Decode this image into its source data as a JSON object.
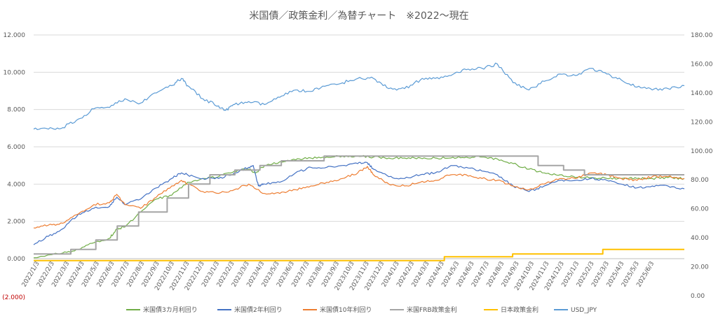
{
  "chart_data": {
    "type": "line",
    "title": "米国債／政策金利／為替チャート　※2022～現在",
    "y_left": {
      "ylim": [
        -2,
        12
      ],
      "ticks": [
        -2,
        0,
        2,
        4,
        6,
        8,
        10,
        12
      ],
      "tick_labels": [
        "(2.000)",
        "0.000",
        "2.000",
        "4.000",
        "6.000",
        "8.000",
        "10.000",
        "12.000"
      ]
    },
    "y_right": {
      "ylim": [
        0,
        180
      ],
      "ticks": [
        0,
        20,
        40,
        60,
        80,
        100,
        120,
        140,
        160,
        180
      ],
      "tick_labels": [
        "0.00",
        "20.00",
        "40.00",
        "60.00",
        "80.00",
        "100.00",
        "120.00",
        "140.00",
        "160.00",
        "180.00"
      ]
    },
    "x_labels": [
      "2022/1/3",
      "2022/2/3",
      "2022/3/3",
      "2022/4/3",
      "2022/5/3",
      "2022/6/3",
      "2022/7/3",
      "2022/8/3",
      "2022/9/3",
      "2022/10/3",
      "2022/11/3",
      "2022/12/3",
      "2023/1/3",
      "2023/2/3",
      "2023/3/3",
      "2023/4/3",
      "2023/5/3",
      "2023/6/3",
      "2023/7/3",
      "2023/8/3",
      "2023/9/3",
      "2023/10/3",
      "2023/11/3",
      "2023/12/3",
      "2024/1/3",
      "2024/2/3",
      "2024/3/3",
      "2024/4/3",
      "2024/5/3",
      "2024/6/3",
      "2024/7/3",
      "2024/8/3",
      "2024/9/3",
      "2024/10/3",
      "2024/11/3",
      "2024/12/3",
      "2025/1/3",
      "2025/2/3",
      "2025/3/3",
      "2025/4/3",
      "2025/5/3",
      "2025/6/3"
    ],
    "x_range": [
      "2022-01-03",
      "2025-07-03"
    ],
    "grid": "horizontal",
    "legend": "bottom",
    "series": [
      {
        "name": "米国債3カ月利回り",
        "axis": "left",
        "color": "#70ad47",
        "style": "line",
        "x": [
          "2022-01-03",
          "2022-03-01",
          "2022-04-01",
          "2022-05-01",
          "2022-06-01",
          "2022-06-15",
          "2022-07-01",
          "2022-08-01",
          "2022-09-01",
          "2022-10-01",
          "2022-11-01",
          "2022-12-01",
          "2023-01-01",
          "2023-02-01",
          "2023-03-01",
          "2023-03-15",
          "2023-04-01",
          "2023-05-01",
          "2023-06-01",
          "2023-07-01",
          "2023-08-01",
          "2023-09-01",
          "2023-10-01",
          "2023-11-01",
          "2023-12-01",
          "2024-01-01",
          "2024-02-01",
          "2024-03-01",
          "2024-04-01",
          "2024-05-01",
          "2024-06-01",
          "2024-07-01",
          "2024-08-01",
          "2024-09-01",
          "2024-10-01",
          "2024-11-01",
          "2024-12-01",
          "2025-01-01",
          "2025-02-01",
          "2025-03-01",
          "2025-04-01",
          "2025-05-01",
          "2025-06-01",
          "2025-07-03"
        ],
        "values": [
          0.05,
          0.3,
          0.5,
          0.85,
          1.1,
          1.6,
          1.7,
          2.5,
          3.2,
          3.4,
          4.1,
          4.3,
          4.4,
          4.7,
          4.8,
          4.6,
          5.0,
          5.2,
          5.3,
          5.4,
          5.45,
          5.5,
          5.5,
          5.45,
          5.4,
          5.4,
          5.4,
          5.4,
          5.4,
          5.45,
          5.45,
          5.35,
          5.1,
          4.8,
          4.6,
          4.5,
          4.35,
          4.35,
          4.3,
          4.3,
          4.3,
          4.3,
          4.35,
          4.3
        ]
      },
      {
        "name": "米国債2年利回り",
        "axis": "left",
        "color": "#4472c4",
        "style": "line",
        "x": [
          "2022-01-03",
          "2022-02-01",
          "2022-03-01",
          "2022-04-01",
          "2022-05-01",
          "2022-06-01",
          "2022-06-15",
          "2022-07-01",
          "2022-08-01",
          "2022-09-01",
          "2022-10-01",
          "2022-10-20",
          "2022-11-01",
          "2022-12-01",
          "2023-01-01",
          "2023-02-01",
          "2023-03-01",
          "2023-03-10",
          "2023-03-20",
          "2023-04-01",
          "2023-05-01",
          "2023-06-01",
          "2023-07-01",
          "2023-08-01",
          "2023-09-01",
          "2023-10-01",
          "2023-10-20",
          "2023-11-01",
          "2023-12-01",
          "2024-01-01",
          "2024-02-01",
          "2024-03-01",
          "2024-04-01",
          "2024-05-01",
          "2024-06-01",
          "2024-07-01",
          "2024-08-01",
          "2024-09-01",
          "2024-10-01",
          "2024-11-01",
          "2024-12-01",
          "2025-01-01",
          "2025-02-01",
          "2025-03-01",
          "2025-04-01",
          "2025-05-01",
          "2025-06-01",
          "2025-07-03"
        ],
        "values": [
          0.75,
          1.2,
          1.6,
          2.4,
          2.7,
          2.8,
          3.3,
          2.9,
          3.2,
          3.8,
          4.3,
          4.6,
          4.5,
          4.3,
          4.3,
          4.6,
          4.9,
          5.0,
          3.9,
          4.0,
          4.1,
          4.6,
          4.9,
          4.9,
          5.0,
          5.1,
          5.15,
          4.8,
          4.4,
          4.3,
          4.5,
          4.6,
          5.0,
          4.9,
          4.7,
          4.5,
          3.9,
          3.6,
          3.9,
          4.2,
          4.2,
          4.3,
          4.2,
          4.0,
          3.8,
          3.9,
          3.9,
          3.75
        ]
      },
      {
        "name": "米国債10年利回り",
        "axis": "left",
        "color": "#ed7d31",
        "style": "line",
        "x": [
          "2022-01-03",
          "2022-02-01",
          "2022-03-01",
          "2022-04-01",
          "2022-05-01",
          "2022-06-01",
          "2022-06-15",
          "2022-07-01",
          "2022-08-01",
          "2022-09-01",
          "2022-10-01",
          "2022-10-20",
          "2022-11-01",
          "2022-12-01",
          "2023-01-01",
          "2023-02-01",
          "2023-03-01",
          "2023-04-01",
          "2023-05-01",
          "2023-06-01",
          "2023-07-01",
          "2023-08-01",
          "2023-09-01",
          "2023-10-01",
          "2023-10-20",
          "2023-11-01",
          "2023-12-01",
          "2024-01-01",
          "2024-02-01",
          "2024-03-01",
          "2024-04-01",
          "2024-05-01",
          "2024-06-01",
          "2024-07-01",
          "2024-08-01",
          "2024-09-01",
          "2024-10-01",
          "2024-11-01",
          "2024-12-01",
          "2025-01-01",
          "2025-02-01",
          "2025-03-01",
          "2025-04-01",
          "2025-05-01",
          "2025-06-01",
          "2025-07-03"
        ],
        "values": [
          1.65,
          1.8,
          1.9,
          2.4,
          2.9,
          3.0,
          3.45,
          2.9,
          2.7,
          3.3,
          3.9,
          4.2,
          4.0,
          3.6,
          3.5,
          3.7,
          4.0,
          3.5,
          3.5,
          3.7,
          3.9,
          4.1,
          4.3,
          4.6,
          4.95,
          4.5,
          4.0,
          3.9,
          4.1,
          4.2,
          4.5,
          4.5,
          4.3,
          4.2,
          3.9,
          3.7,
          4.0,
          4.3,
          4.3,
          4.6,
          4.5,
          4.3,
          4.2,
          4.4,
          4.4,
          4.3
        ]
      },
      {
        "name": "米国FRB政策金利",
        "axis": "left",
        "color": "#a5a5a5",
        "style": "step",
        "x": [
          "2022-01-03",
          "2022-03-17",
          "2022-05-05",
          "2022-06-16",
          "2022-07-28",
          "2022-09-22",
          "2022-11-03",
          "2022-12-15",
          "2023-02-02",
          "2023-03-23",
          "2023-05-04",
          "2023-07-27",
          "2024-09-19",
          "2024-11-08",
          "2024-12-19",
          "2025-07-03"
        ],
        "values": [
          0.25,
          0.5,
          1.0,
          1.75,
          2.5,
          3.25,
          4.0,
          4.5,
          4.75,
          5.0,
          5.25,
          5.5,
          5.0,
          4.75,
          4.5,
          4.5
        ]
      },
      {
        "name": "日本政策金利",
        "axis": "left",
        "color": "#ffc000",
        "style": "step",
        "x": [
          "2022-01-03",
          "2024-03-19",
          "2024-07-31",
          "2025-01-24",
          "2025-07-03"
        ],
        "values": [
          -0.1,
          0.1,
          0.25,
          0.5,
          0.5
        ]
      },
      {
        "name": "USD_JPY",
        "axis": "right",
        "color": "#5b9bd5",
        "style": "line",
        "x": [
          "2022-01-03",
          "2022-02-01",
          "2022-03-01",
          "2022-04-01",
          "2022-05-01",
          "2022-06-01",
          "2022-07-01",
          "2022-08-01",
          "2022-09-01",
          "2022-10-01",
          "2022-10-20",
          "2022-11-01",
          "2022-12-01",
          "2023-01-01",
          "2023-01-15",
          "2023-02-01",
          "2023-03-01",
          "2023-04-01",
          "2023-05-01",
          "2023-06-01",
          "2023-07-01",
          "2023-08-01",
          "2023-09-01",
          "2023-10-01",
          "2023-11-01",
          "2023-12-01",
          "2024-01-01",
          "2024-02-01",
          "2024-03-01",
          "2024-04-01",
          "2024-05-01",
          "2024-06-01",
          "2024-07-01",
          "2024-08-01",
          "2024-09-01",
          "2024-10-01",
          "2024-11-01",
          "2024-12-01",
          "2025-01-01",
          "2025-02-01",
          "2025-03-01",
          "2025-04-01",
          "2025-05-01",
          "2025-06-01",
          "2025-07-03"
        ],
        "values": [
          115,
          115,
          116,
          122,
          129,
          130,
          136,
          133,
          140,
          145,
          150,
          145,
          136,
          131,
          128,
          132,
          134,
          132,
          137,
          142,
          141,
          145,
          147,
          150,
          150,
          143,
          143,
          149,
          150,
          152,
          156,
          157,
          160,
          147,
          142,
          148,
          153,
          152,
          157,
          153,
          149,
          144,
          142,
          143,
          145
        ]
      }
    ]
  }
}
